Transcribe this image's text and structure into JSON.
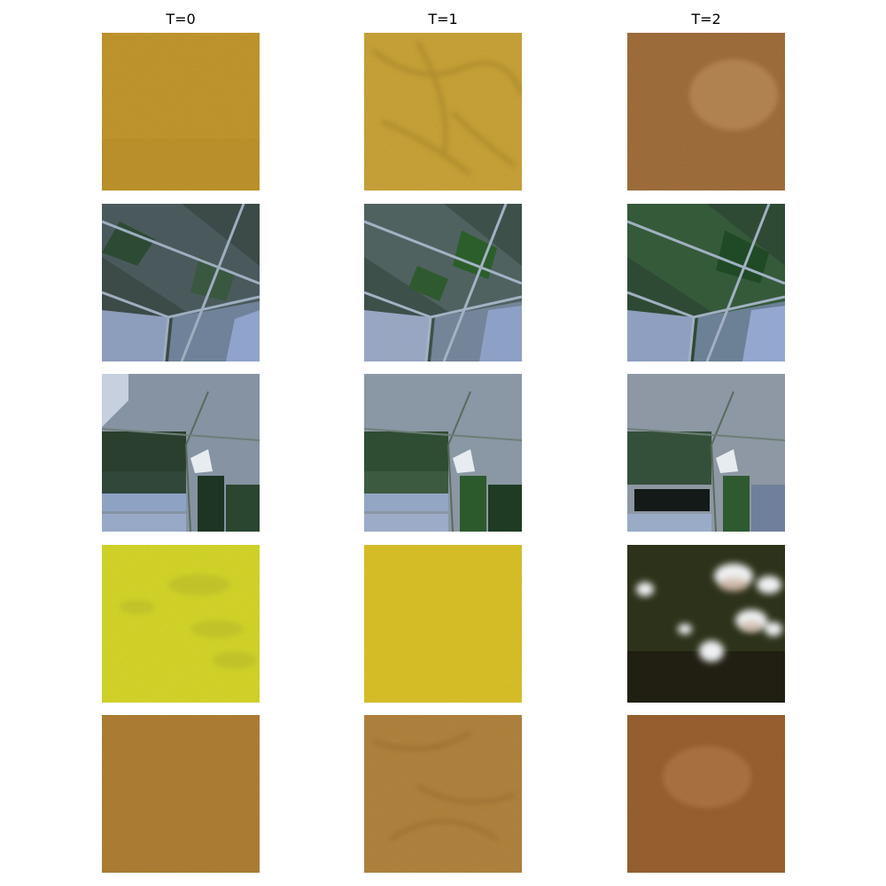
{
  "columns": [
    {
      "title": "T=0"
    },
    {
      "title": "T=1"
    },
    {
      "title": "T=2"
    }
  ],
  "rows": [
    {
      "tiles": [
        {
          "content": "desert-sand-texture"
        },
        {
          "content": "desert-sand-with-dark-streaks"
        },
        {
          "content": "brown-desert-sand"
        }
      ]
    },
    {
      "tiles": [
        {
          "content": "agricultural-fields-diagonal-roads"
        },
        {
          "content": "agricultural-fields-diagonal-roads"
        },
        {
          "content": "agricultural-fields-diagonal-roads"
        }
      ]
    },
    {
      "tiles": [
        {
          "content": "fields-and-buildings"
        },
        {
          "content": "fields-and-buildings"
        },
        {
          "content": "fields-and-buildings-dark-pond"
        }
      ]
    },
    {
      "tiles": [
        {
          "content": "bright-yellow-sand"
        },
        {
          "content": "bright-yellow-sand"
        },
        {
          "content": "dark-terrain-with-clouds"
        }
      ]
    },
    {
      "tiles": [
        {
          "content": "tan-desert-sand"
        },
        {
          "content": "tan-desert-sand-streaks"
        },
        {
          "content": "brown-desert-sand"
        }
      ]
    }
  ]
}
